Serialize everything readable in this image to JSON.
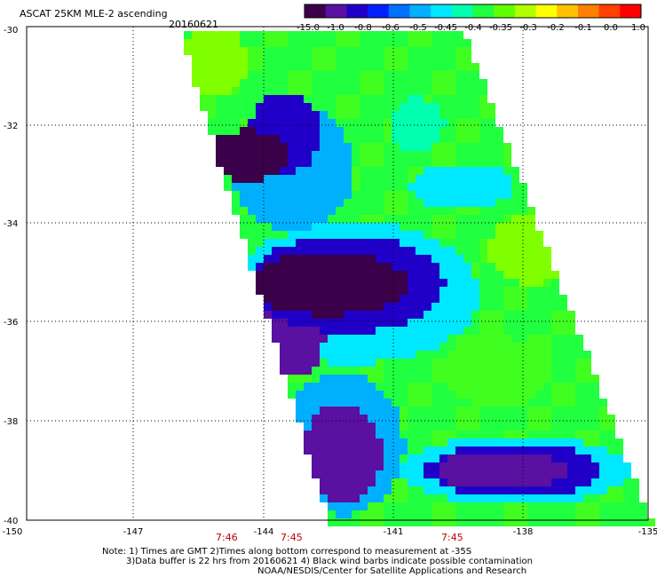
{
  "header": {
    "title": "ASCAT 25KM MLE-2 ascending",
    "date": "20160621"
  },
  "colorbar": {
    "labels": [
      "-15.0",
      "-1.0",
      "-0.8",
      "-0.6",
      "-0.5",
      "-0.45",
      "-0.4",
      "-0.35",
      "-0.3",
      "-0.2",
      "-0.1",
      "0.0",
      "1.0"
    ],
    "colors": [
      "#3a004a",
      "#5a10a0",
      "#2000c8",
      "#0020ff",
      "#0070ff",
      "#00b0ff",
      "#00e8ff",
      "#00ffb0",
      "#20ff40",
      "#60ff00",
      "#b0ff00",
      "#ffff00",
      "#ffc000",
      "#ff8000",
      "#ff4000",
      "#ff0000"
    ]
  },
  "axes": {
    "lat_labels": [
      "-30",
      "-32",
      "-34",
      "-36",
      "-38",
      "-40"
    ],
    "lon_labels": [
      "-150",
      "-147",
      "-144",
      "-141",
      "-138",
      "-135"
    ]
  },
  "times": {
    "labels": [
      "7:46",
      "7:45",
      "7:45"
    ],
    "color": "#c00000"
  },
  "notes": {
    "line1": "Note: 1) Times are GMT 2)Times along bottom correspond to measurement at -35S",
    "line2": "3)Data buffer is 22 hrs from 20160621 4) Black wind barbs indicate possible contamination",
    "line3": "NOAA/NESDIS/Center for Satellite Applications and Research"
  }
}
